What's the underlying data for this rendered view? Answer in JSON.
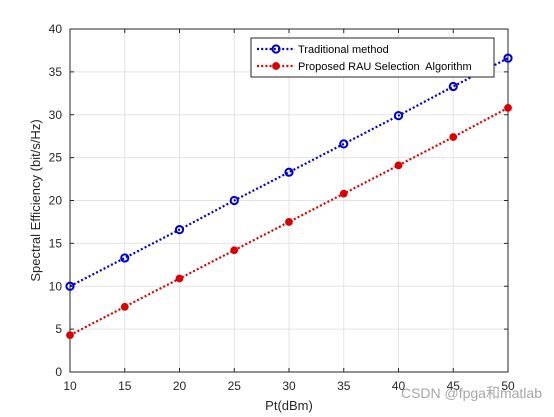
{
  "chart_data": {
    "type": "line",
    "xlabel": "Pt(dBm)",
    "ylabel": "Spectral Efficiency (bit/s/Hz)",
    "xlim": [
      10,
      50
    ],
    "ylim": [
      0,
      40
    ],
    "xticks": [
      10,
      15,
      20,
      25,
      30,
      35,
      40,
      45,
      50
    ],
    "yticks": [
      0,
      5,
      10,
      15,
      20,
      25,
      30,
      35,
      40
    ],
    "grid": true,
    "legend_position": "top-right",
    "x": [
      10,
      15,
      20,
      25,
      30,
      35,
      40,
      45,
      50
    ],
    "series": [
      {
        "name": "Traditional method",
        "values": [
          10.0,
          13.3,
          16.6,
          20.0,
          23.3,
          26.6,
          29.9,
          33.3,
          36.6
        ],
        "color": "#0000cc",
        "line_style": "dotted",
        "marker": "open-circle"
      },
      {
        "name": "Proposed RAU Selection  Algorithm",
        "values": [
          4.3,
          7.6,
          10.9,
          14.2,
          17.5,
          20.8,
          24.1,
          27.4,
          30.8
        ],
        "color": "#dd0000",
        "line_style": "dotted",
        "marker": "filled-circle"
      }
    ]
  },
  "watermark": "CSDN @fpga和matlab"
}
